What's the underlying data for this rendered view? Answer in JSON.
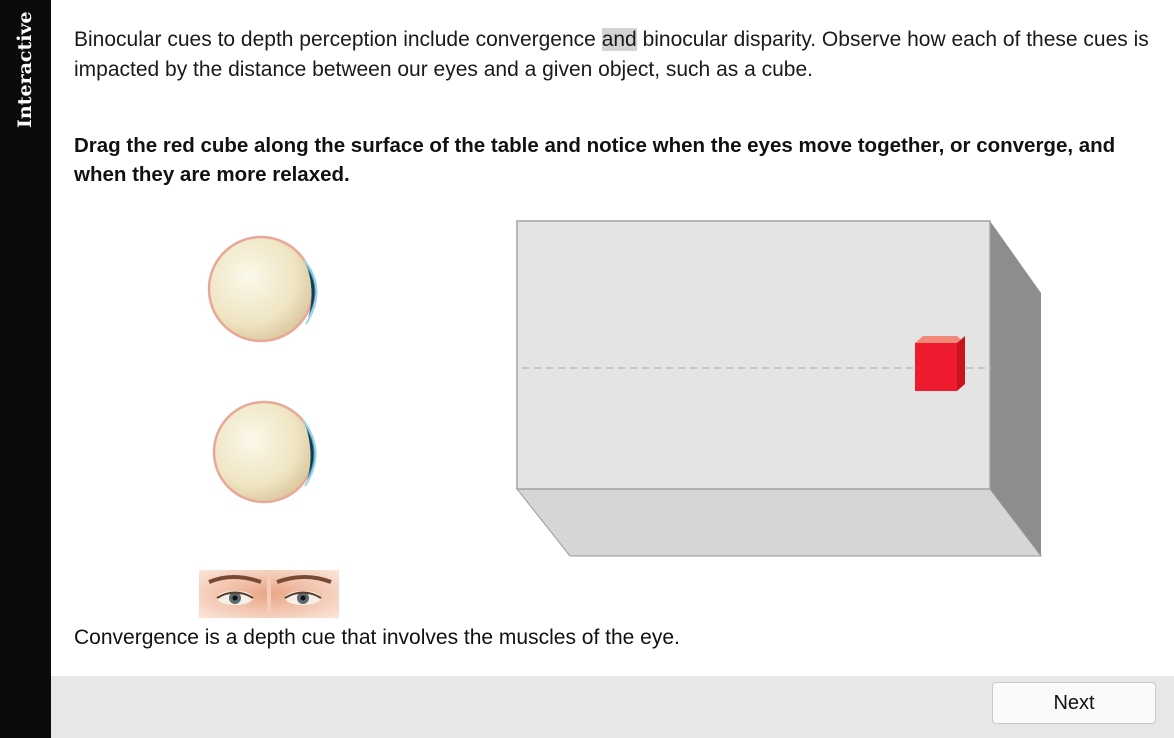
{
  "sidebar": {
    "label": "Interactive"
  },
  "intro": {
    "before": "Binocular cues to depth perception include convergence ",
    "highlight": "and",
    "after": " binocular disparity. Observe how each of these cues is impacted by the distance between our eyes and a given object, such as a cube."
  },
  "instruction": "Drag the red cube along the surface of the table and notice when the eyes move together, or converge, and when they are more relaxed.",
  "caption": "Convergence is a depth cue that involves the muscles of the eye.",
  "footer": {
    "next_label": "Next"
  },
  "colors": {
    "cube": "#ee1c2e",
    "table_top": "#e4e4e4",
    "sidebar": "#0b0b0b",
    "footer": "#e7e7e7"
  }
}
